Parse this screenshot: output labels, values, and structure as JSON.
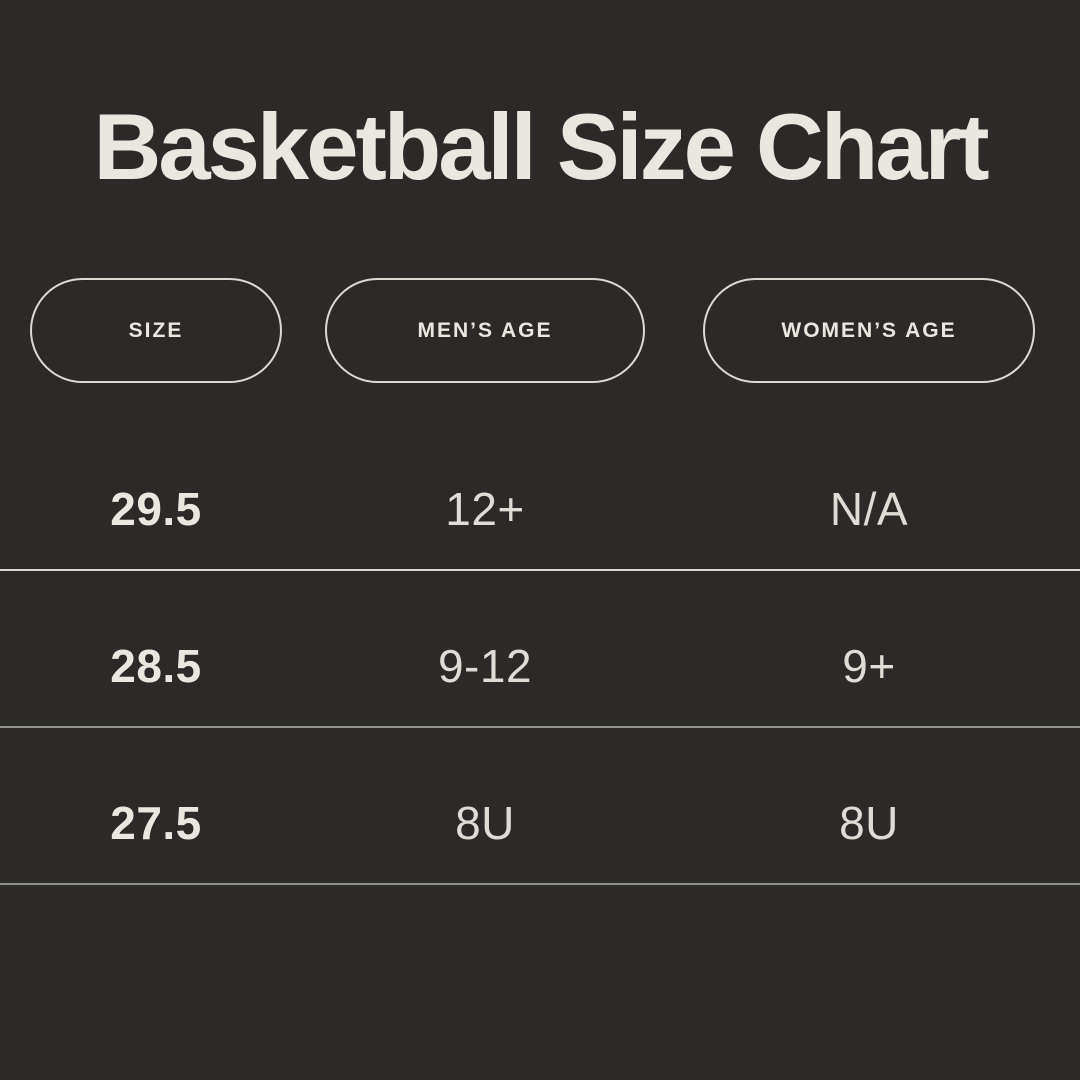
{
  "chart_data": {
    "type": "table",
    "title": "Basketball Size Chart",
    "columns": [
      "SIZE",
      "MEN’S AGE",
      "WOMEN’S AGE"
    ],
    "rows": [
      [
        "29.5",
        "12+",
        "N/A"
      ],
      [
        "28.5",
        "9-12",
        "9+"
      ],
      [
        "27.5",
        "8U",
        "8U"
      ]
    ]
  },
  "colors": {
    "background": "#2b2a29",
    "text_primary": "#eae7e1",
    "text_secondary": "#dfdcd6",
    "pill_border": "#dcd9d3",
    "divider_light": "#d8d5cf",
    "divider_dim": "#8f8f8d"
  }
}
